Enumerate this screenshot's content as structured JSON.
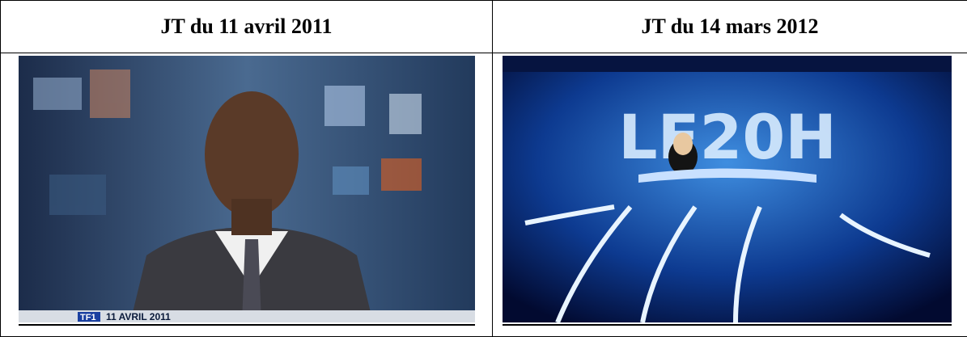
{
  "table": {
    "headers": [
      "JT du 11 avril 2011",
      "JT du 14 mars 2012"
    ],
    "images": [
      {
        "logo": "TF1",
        "caption": "11 AVRIL 2011"
      },
      {
        "overlay": "LE20H"
      }
    ]
  }
}
